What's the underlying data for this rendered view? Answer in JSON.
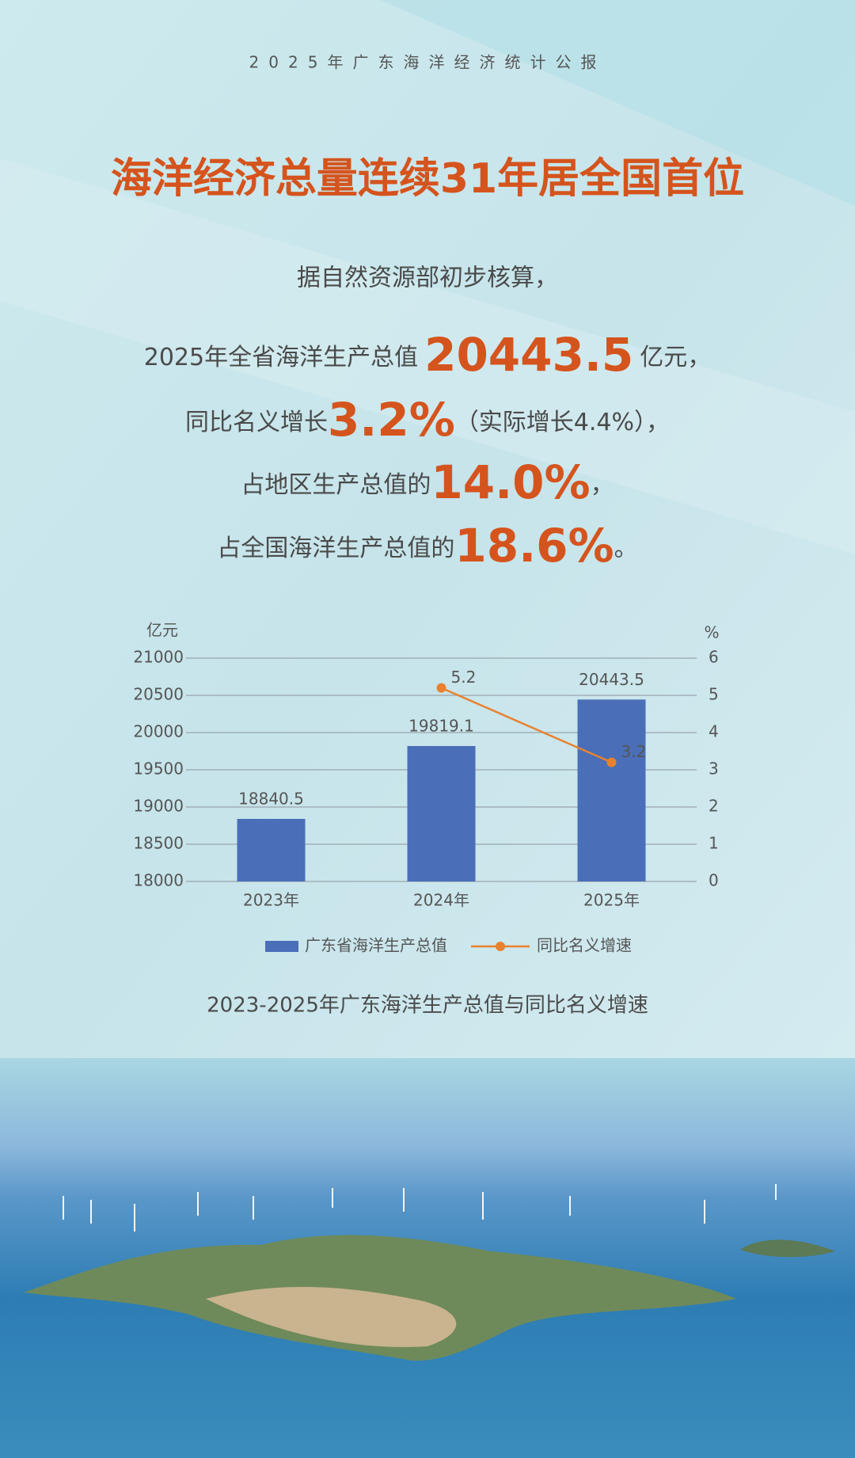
{
  "header": {
    "kicker": "2025年广东海洋经济统计公报",
    "title": "海洋经济总量连续31年居全国首位"
  },
  "intro": "据自然资源部初步核算，",
  "facts": [
    {
      "before": "2025年全省海洋生产总值",
      "highlight": "20443.5",
      "after": "亿元，"
    },
    {
      "before": "同比名义增长",
      "highlight": "3.2%",
      "after": "（实际增长4.4%），"
    },
    {
      "before": "占地区生产总值的",
      "highlight": "14.0%",
      "after": "，"
    },
    {
      "before": "占全国海洋生产总值的",
      "highlight": "18.6%",
      "after": "。"
    }
  ],
  "chart_data": {
    "type": "bar",
    "caption": "2023-2025年广东海洋生产总值与同比名义增速",
    "y_label": "亿元",
    "y2_label": "%",
    "categories": [
      "2023年",
      "2024年",
      "2025年"
    ],
    "series": [
      {
        "name": "广东省海洋生产总值",
        "type": "bar",
        "color": "#4a6fb8",
        "values": [
          18840.5,
          19819.1,
          20443.5
        ]
      },
      {
        "name": "同比名义增速",
        "type": "line",
        "axis": "y2",
        "color": "#e8822e",
        "values": [
          null,
          5.2,
          3.2
        ]
      }
    ],
    "ylim": [
      18000,
      21000
    ],
    "yticks": [
      18000,
      18500,
      19000,
      19500,
      20000,
      20500,
      21000
    ],
    "y2lim": [
      0,
      6
    ],
    "y2ticks": [
      0,
      1,
      2,
      3,
      4,
      5,
      6
    ],
    "grid": true,
    "legend": "bottom"
  }
}
